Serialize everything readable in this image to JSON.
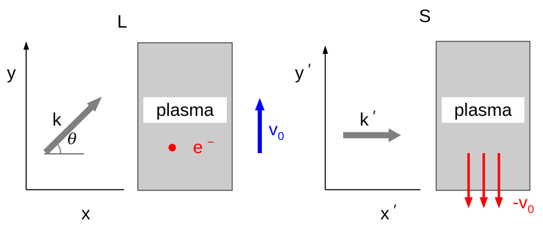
{
  "frames": {
    "lab": {
      "title": "L",
      "x_axis_label": "x",
      "y_axis_label": "y",
      "wave_vector_label": "k",
      "angle_label": "θ",
      "plasma_label": "plasma",
      "electron_label": "e",
      "electron_charge_sign": "−",
      "velocity_label": "v",
      "velocity_subscript": "0"
    },
    "rest": {
      "title": "S",
      "x_axis_label": "x",
      "y_axis_label": "y",
      "prime_mark": "′",
      "wave_vector_label": "k",
      "plasma_label": "plasma",
      "flow_velocity_label": "-v",
      "flow_velocity_subscript": "0"
    }
  },
  "colors": {
    "plasma_fill": "#cccccc",
    "wave_arrow": "#808080",
    "electron": "#ff0000",
    "velocity_arrow": "#0000ff",
    "flow_arrows": "#ff0000",
    "axes": "#000000"
  }
}
